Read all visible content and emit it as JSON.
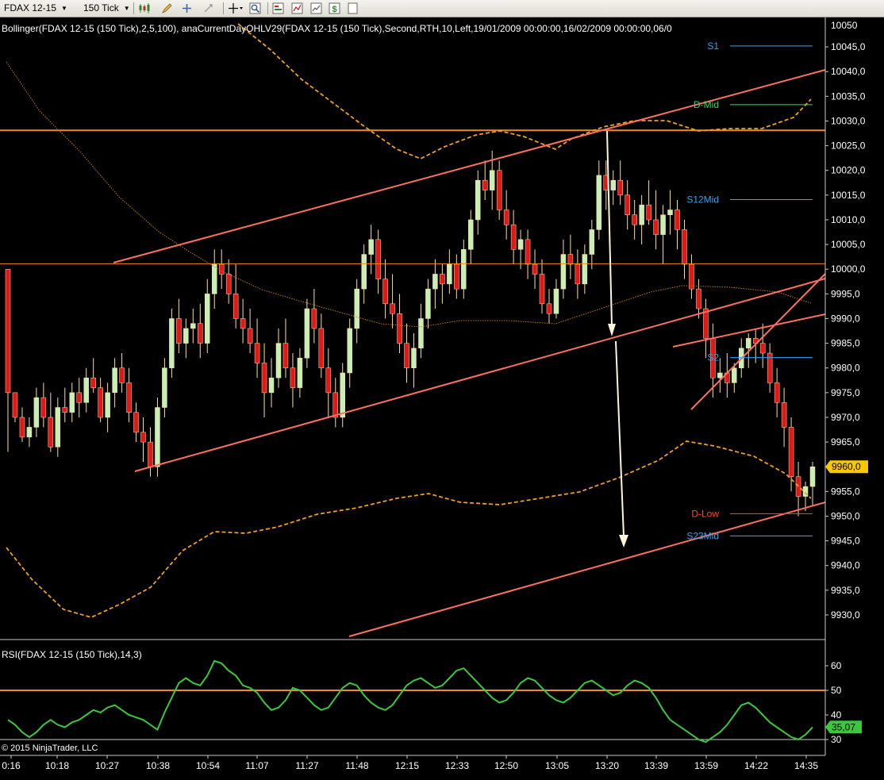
{
  "toolbar": {
    "instrument": "FDAX 12-15",
    "interval": "150 Tick",
    "icons": [
      "bar-type-icon",
      "drawing-pencil-icon",
      "crosshair-plus-icon",
      "crosshair-minus-icon",
      "move-cursor-icon",
      "zoom-magnifier-icon",
      "indicators-icon",
      "strategies-icon",
      "chart-properties-icon",
      "dollar-icon",
      "page-icon"
    ]
  },
  "chart_data": {
    "type": "candlestick",
    "indicator_label": "Bollinger(FDAX 12-15  (150  Tick),2,5,100),  anaCurrentDayOHLV29(FDAX  12-15  (150  Tick),Second,RTH,10,Left,19/01/2009  00:00:00,16/02/2009  00:00:00,06/0",
    "y_ticks": [
      "10045,0",
      "10040,0",
      "10035,0",
      "10030,0",
      "10025,0",
      "10020,0",
      "10015,0",
      "10010,0",
      "10005,0",
      "10000,0",
      "9995,0",
      "9990,0",
      "9985,0",
      "9980,0",
      "9975,0",
      "9970,0",
      "9965,0",
      "9960,0",
      "9955,0",
      "9950,0",
      "9945,0",
      "9940,0",
      "9935,0",
      "9930,0"
    ],
    "y_range": [
      9925,
      10049
    ],
    "x_ticks": [
      "0:16",
      "10:18",
      "10:27",
      "10:38",
      "10:54",
      "11:07",
      "11:27",
      "11:48",
      "12:15",
      "12:33",
      "12:50",
      "13:05",
      "13:20",
      "13:39",
      "13:59",
      "14:22",
      "14:35"
    ],
    "y_axis_top_partial": "10050",
    "last_price": "9960,0",
    "last_price_color": "#f5c800",
    "level_labels": [
      {
        "name": "S1",
        "value": 10045.2,
        "color": "#29a9ff"
      },
      {
        "name": "D-Mid",
        "value": 10033.3,
        "color": "#2ddc5a"
      },
      {
        "name": "S12Mid",
        "value": 10014.1,
        "color": "#29a9ff"
      },
      {
        "name": "S2",
        "value": 9982.1,
        "color": "#29a9ff"
      },
      {
        "name": "D-Low",
        "value": 9950.5,
        "color": "#ff4a2a"
      },
      {
        "name": "S23Mid",
        "value": 9946.0,
        "color": "#29a9ff"
      }
    ],
    "horizontal_lines": [
      10028.1,
      10001.1
    ],
    "candles_ohlc_approx": [
      [
        10000,
        9998,
        9963,
        9975
      ],
      [
        9975,
        9975,
        9969,
        9970
      ],
      [
        9970,
        9972,
        9965,
        9966
      ],
      [
        9966,
        9970,
        9964,
        9968
      ],
      [
        9968,
        9976,
        9966,
        9974
      ],
      [
        9974,
        9977,
        9968,
        9970
      ],
      [
        9970,
        9975,
        9963,
        9964
      ],
      [
        9964,
        9974,
        9962,
        9972
      ],
      [
        9972,
        9976,
        9969,
        9971
      ],
      [
        9971,
        9977,
        9969,
        9975
      ],
      [
        9975,
        9978,
        9970,
        9973
      ],
      [
        9973,
        9980,
        9971,
        9978
      ],
      [
        9978,
        9982,
        9975,
        9976
      ],
      [
        9976,
        9978,
        9969,
        9970
      ],
      [
        9970,
        9977,
        9967,
        9975
      ],
      [
        9975,
        9982,
        9972,
        9980
      ],
      [
        9980,
        9983,
        9975,
        9977
      ],
      [
        9977,
        9980,
        9969,
        9971
      ],
      [
        9971,
        9973,
        9965,
        9967
      ],
      [
        9967,
        9970,
        9961,
        9965
      ],
      [
        9965,
        9968,
        9958,
        9960
      ],
      [
        9960,
        9974,
        9958,
        9972
      ],
      [
        9972,
        9982,
        9970,
        9980
      ],
      [
        9980,
        9992,
        9978,
        9990
      ],
      [
        9990,
        9994,
        9983,
        9985
      ],
      [
        9985,
        9990,
        9982,
        9988
      ],
      [
        9988,
        9992,
        9985,
        9989
      ],
      [
        9989,
        9993,
        9982,
        9985
      ],
      [
        9985,
        9998,
        9983,
        9995
      ],
      [
        9995,
        10004,
        9992,
        10001
      ],
      [
        10001,
        10004,
        9996,
        9999
      ],
      [
        9999,
        10002,
        9993,
        9995
      ],
      [
        9995,
        10001,
        9988,
        9990
      ],
      [
        9990,
        9994,
        9985,
        9988
      ],
      [
        9988,
        9992,
        9983,
        9985
      ],
      [
        9985,
        9990,
        9978,
        9981
      ],
      [
        9981,
        9985,
        9970,
        9975
      ],
      [
        9975,
        9982,
        9972,
        9978
      ],
      [
        9978,
        9988,
        9976,
        9985
      ],
      [
        9985,
        9990,
        9978,
        9980
      ],
      [
        9980,
        9983,
        9972,
        9976
      ],
      [
        9976,
        9984,
        9974,
        9982
      ],
      [
        9982,
        9994,
        9980,
        9992
      ],
      [
        9992,
        9996,
        9985,
        9988
      ],
      [
        9988,
        9991,
        9978,
        9980
      ],
      [
        9980,
        9984,
        9970,
        9975
      ],
      [
        9975,
        9978,
        9968,
        9970
      ],
      [
        9970,
        9981,
        9968,
        9979
      ],
      [
        9979,
        9990,
        9976,
        9988
      ],
      [
        9988,
        9998,
        9985,
        9996
      ],
      [
        9996,
        10005,
        9993,
        10003
      ],
      [
        10003,
        10009,
        9999,
        10006
      ],
      [
        10006,
        10008,
        9995,
        9998
      ],
      [
        9998,
        10002,
        9990,
        9993
      ],
      [
        9993,
        9999,
        9988,
        9991
      ],
      [
        9991,
        9995,
        9983,
        9985
      ],
      [
        9985,
        9989,
        9977,
        9980
      ],
      [
        9980,
        9987,
        9976,
        9984
      ],
      [
        9984,
        9993,
        9982,
        9990
      ],
      [
        9990,
        9998,
        9988,
        9996
      ],
      [
        9996,
        10002,
        9992,
        9999
      ],
      [
        9999,
        10001,
        9993,
        9997
      ],
      [
        9997,
        10004,
        9995,
        10001
      ],
      [
        10001,
        10003,
        9994,
        9996
      ],
      [
        9996,
        10006,
        9994,
        10004
      ],
      [
        10004,
        10012,
        10001,
        10010
      ],
      [
        10010,
        10020,
        10007,
        10018
      ],
      [
        10018,
        10022,
        10014,
        10016
      ],
      [
        10016,
        10024,
        10012,
        10020
      ],
      [
        10020,
        10022,
        10010,
        10012
      ],
      [
        10012,
        10016,
        10006,
        10009
      ],
      [
        10009,
        10012,
        10001,
        10004
      ],
      [
        10004,
        10008,
        10000,
        10006
      ],
      [
        10006,
        10008,
        9998,
        10001
      ],
      [
        10001,
        10004,
        9996,
        9999
      ],
      [
        9999,
        10002,
        9991,
        9993
      ],
      [
        9993,
        9996,
        9989,
        9991
      ],
      [
        9991,
        9998,
        9990,
        9996
      ],
      [
        9996,
        10006,
        9994,
        10003
      ],
      [
        10003,
        10007,
        9998,
        10001
      ],
      [
        10001,
        10004,
        9994,
        9997
      ],
      [
        9997,
        10005,
        9995,
        10003
      ],
      [
        10003,
        10010,
        10000,
        10008
      ],
      [
        10008,
        10022,
        10006,
        10019
      ],
      [
        10019,
        10022,
        10012,
        10016
      ],
      [
        10016,
        10020,
        10013,
        10018
      ],
      [
        10018,
        10022,
        10013,
        10015
      ],
      [
        10015,
        10018,
        10008,
        10011
      ],
      [
        10011,
        10014,
        10006,
        10009
      ],
      [
        10009,
        10015,
        10005,
        10013
      ],
      [
        10013,
        10018,
        10009,
        10010
      ],
      [
        10010,
        10016,
        10004,
        10007
      ],
      [
        10007,
        10013,
        10001,
        10011
      ],
      [
        10011,
        10016,
        10007,
        10012
      ],
      [
        10012,
        10014,
        10004,
        10008
      ],
      [
        10008,
        10010,
        9998,
        10001
      ],
      [
        10001,
        10003,
        9994,
        9996
      ],
      [
        9996,
        9998,
        9990,
        9992
      ],
      [
        9992,
        9994,
        9982,
        9986
      ],
      [
        9986,
        9989,
        9974,
        9978
      ],
      [
        9978,
        9982,
        9975,
        9979
      ],
      [
        9979,
        9983,
        9974,
        9977
      ],
      [
        9977,
        9981,
        9975,
        9980
      ],
      [
        9980,
        9986,
        9978,
        9984
      ],
      [
        9984,
        9987,
        9980,
        9986
      ],
      [
        9986,
        9988,
        9981,
        9985
      ],
      [
        9985,
        9989,
        9980,
        9983
      ],
      [
        9983,
        9985,
        9975,
        9977
      ],
      [
        9977,
        9980,
        9970,
        9973
      ],
      [
        9973,
        9976,
        9964,
        9968
      ],
      [
        9968,
        9970,
        9955,
        9958
      ],
      [
        9958,
        9961,
        9950,
        9954
      ],
      [
        9954,
        9957,
        9951,
        9956
      ],
      [
        9956,
        9961,
        9952,
        9960
      ]
    ],
    "rsi": {
      "label": "RSI(FDAX 12-15 (150 Tick),14,3)",
      "last": "35,07",
      "ticks": [
        "60",
        "50",
        "40",
        "30"
      ],
      "levels": [
        50,
        30
      ],
      "values": [
        38,
        36,
        33,
        31,
        33,
        36,
        38,
        36,
        35,
        37,
        38,
        40,
        42,
        41,
        43,
        44,
        42,
        40,
        39,
        38,
        36,
        34,
        41,
        47,
        53,
        55,
        53,
        52,
        56,
        62,
        61,
        58,
        56,
        52,
        51,
        49,
        45,
        42,
        43,
        46,
        51,
        50,
        47,
        44,
        42,
        43,
        47,
        51,
        53,
        52,
        48,
        45,
        43,
        42,
        44,
        48,
        52,
        54,
        55,
        53,
        51,
        52,
        55,
        58,
        59,
        56,
        53,
        50,
        47,
        45,
        46,
        49,
        53,
        55,
        54,
        51,
        48,
        46,
        45,
        47,
        50,
        53,
        54,
        52,
        50,
        48,
        49,
        52,
        54,
        53,
        51,
        47,
        42,
        38,
        36,
        34,
        32,
        30,
        29,
        31,
        33,
        36,
        40,
        44,
        45,
        43,
        40,
        37,
        35,
        33,
        31,
        30,
        32,
        35
      ]
    },
    "copyright": "© 2015 NinjaTrader, LLC"
  }
}
